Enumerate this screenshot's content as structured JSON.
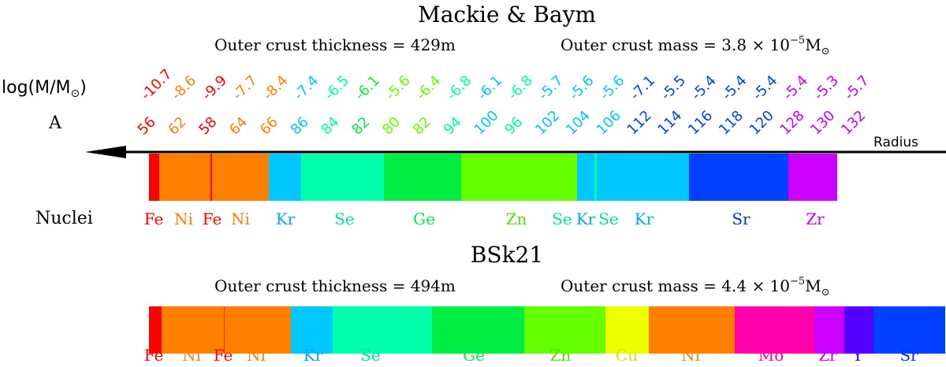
{
  "panels": [
    {
      "title": "Mackie & Baym",
      "thickness_label": "Outer crust thickness",
      "thickness_value": "= 429m",
      "mass_label": "Outer crust mass",
      "mass_eq": "=",
      "mass_mantissa": "3.8 × 10",
      "mass_exp": "−5",
      "mass_unit": "M",
      "segments": [
        {
          "element": "Fe",
          "A": "56",
          "logM": "-10.7",
          "color": "#ff0000",
          "width": 13
        },
        {
          "element": "Ni",
          "A": "62",
          "logM": "-8.6",
          "color": "#ff8000",
          "width": 65
        },
        {
          "element": "Fe",
          "A": "58",
          "logM": "-9.9",
          "color": "#ff0000",
          "width": 2
        },
        {
          "element": "Ni",
          "A": "64",
          "logM": "-7.7",
          "color": "#ff8000",
          "width": 72
        },
        {
          "element": "Ni",
          "A": "66",
          "logM": "-8.4",
          "color": "#ff8000",
          "width": 0
        },
        {
          "element": "Kr",
          "A": "86",
          "logM": "-7.4",
          "color": "#00c8ff",
          "width": 41
        },
        {
          "element": "Se",
          "A": "84",
          "logM": "-6.5",
          "color": "#00ffaa",
          "width": 105
        },
        {
          "element": "Ge",
          "A": "82",
          "logM": "-6.1",
          "color": "#00ee44",
          "width": 98
        },
        {
          "element": "Zn",
          "A": "80",
          "logM": "-5.6",
          "color": "#66ff00",
          "width": 147
        },
        {
          "element": "Zn",
          "A": "82",
          "logM": "-6.4",
          "color": "#66ff00",
          "width": 0
        },
        {
          "element": "Se",
          "A": "94",
          "logM": "-6.8",
          "color": "#00ffaa",
          "width": 0
        },
        {
          "element": "Kr",
          "A": "100",
          "logM": "-6.1",
          "color": "#00c8ff",
          "width": 22
        },
        {
          "element": "Se",
          "A": "96",
          "logM": "-6.8",
          "color": "#00ffaa",
          "width": 3
        },
        {
          "element": "Kr",
          "A": "102",
          "logM": "-5.7",
          "color": "#00c8ff",
          "width": 117
        },
        {
          "element": "Kr",
          "A": "104",
          "logM": "-5.6",
          "color": "#00c8ff",
          "width": 0
        },
        {
          "element": "Kr",
          "A": "106",
          "logM": "-5.6",
          "color": "#00c8ff",
          "width": 0
        },
        {
          "element": "Sr",
          "A": "112",
          "logM": "-7.1",
          "color": "#0040ff",
          "width": 126
        },
        {
          "element": "Sr",
          "A": "114",
          "logM": "-5.5",
          "color": "#0040ff",
          "width": 0
        },
        {
          "element": "Sr",
          "A": "116",
          "logM": "-5.4",
          "color": "#0040ff",
          "width": 0
        },
        {
          "element": "Sr",
          "A": "118",
          "logM": "-5.4",
          "color": "#0040ff",
          "width": 0
        },
        {
          "element": "Sr",
          "A": "120",
          "logM": "-5.4",
          "color": "#0040ff",
          "width": 0
        },
        {
          "element": "Zr",
          "A": "128",
          "logM": "-5.4",
          "color": "#cc00ff",
          "width": 62
        },
        {
          "element": "Zr",
          "A": "130",
          "logM": "-5.3",
          "color": "#cc00ff",
          "width": 0
        },
        {
          "element": "Zr",
          "A": "132",
          "logM": "-5.7",
          "color": "#cc00ff",
          "width": 0
        }
      ],
      "nuclei_labels": [
        {
          "text": "Fe",
          "color": "#ff0000"
        },
        {
          "text": "Ni",
          "color": "#ff8000"
        },
        {
          "text": "Fe",
          "color": "#ff0000"
        },
        {
          "text": "Ni",
          "color": "#ff8000"
        },
        {
          "text": "Kr",
          "color": "#00aaee"
        },
        {
          "text": "Se",
          "color": "#00e6a0"
        },
        {
          "text": "Ge",
          "color": "#00ee44"
        },
        {
          "text": "Zn",
          "color": "#55dd00"
        },
        {
          "text": "Se",
          "color": "#00e6a0"
        },
        {
          "text": "Kr",
          "color": "#00aaee"
        },
        {
          "text": "Se",
          "color": "#00e6a0"
        },
        {
          "text": "Kr",
          "color": "#00aaee"
        },
        {
          "text": "Sr",
          "color": "#0033ee"
        },
        {
          "text": "Zr",
          "color": "#cc00ee"
        }
      ]
    },
    {
      "title": "BSk21",
      "thickness_label": "Outer crust thickness",
      "thickness_value": "= 494m",
      "mass_label": "Outer crust mass",
      "mass_eq": "=",
      "mass_mantissa": "4.4 × 10",
      "mass_exp": "−5",
      "mass_unit": "M",
      "segments": [
        {
          "element": "Fe",
          "color": "#ff0000",
          "width": 16
        },
        {
          "element": "Ni",
          "color": "#ff8000",
          "width": 79
        },
        {
          "element": "Fe",
          "color": "#ff3300",
          "width": 1
        },
        {
          "element": "Ni",
          "color": "#ff8000",
          "width": 84
        },
        {
          "element": "Kr",
          "color": "#00c8ff",
          "width": 53
        },
        {
          "element": "Se",
          "color": "#00ffaa",
          "width": 126
        },
        {
          "element": "Ge",
          "color": "#00ee44",
          "width": 117
        },
        {
          "element": "Zn",
          "color": "#66ff00",
          "width": 103
        },
        {
          "element": "Cu",
          "color": "#eeff00",
          "width": 55
        },
        {
          "element": "Ni",
          "color": "#ff8000",
          "width": 109
        },
        {
          "element": "Mo",
          "color": "#ff00aa",
          "width": 101
        },
        {
          "element": "Zr",
          "color": "#cc00ff",
          "width": 38
        },
        {
          "element": "Y",
          "color": "#5500ff",
          "width": 37
        },
        {
          "element": "Sr",
          "color": "#0040ff",
          "width": 91
        }
      ],
      "nuclei_labels": [
        {
          "text": "Fe",
          "color": "#ff0000"
        },
        {
          "text": "Ni",
          "color": "#ff8000"
        },
        {
          "text": "Fe",
          "color": "#ff0000"
        },
        {
          "text": "Ni",
          "color": "#ff8000"
        },
        {
          "text": "Kr",
          "color": "#00aaee"
        },
        {
          "text": "Se",
          "color": "#00e6a0"
        },
        {
          "text": "Ge",
          "color": "#00ee44"
        },
        {
          "text": "Zn",
          "color": "#55dd00"
        },
        {
          "text": "Cu",
          "color": "#dddd00"
        },
        {
          "text": "Ni",
          "color": "#ff8000"
        },
        {
          "text": "Mo",
          "color": "#ff00aa"
        },
        {
          "text": "Zr",
          "color": "#cc00ee"
        },
        {
          "text": "Y",
          "color": "#5500ee"
        },
        {
          "text": "Sr",
          "color": "#0033ee"
        }
      ]
    }
  ],
  "row_labels": {
    "logM": "log(M/M",
    "logM_close": ")",
    "A": "A",
    "nuclei": "Nuclei"
  },
  "arrow_label": "Radius",
  "sun_symbol": "⊙"
}
